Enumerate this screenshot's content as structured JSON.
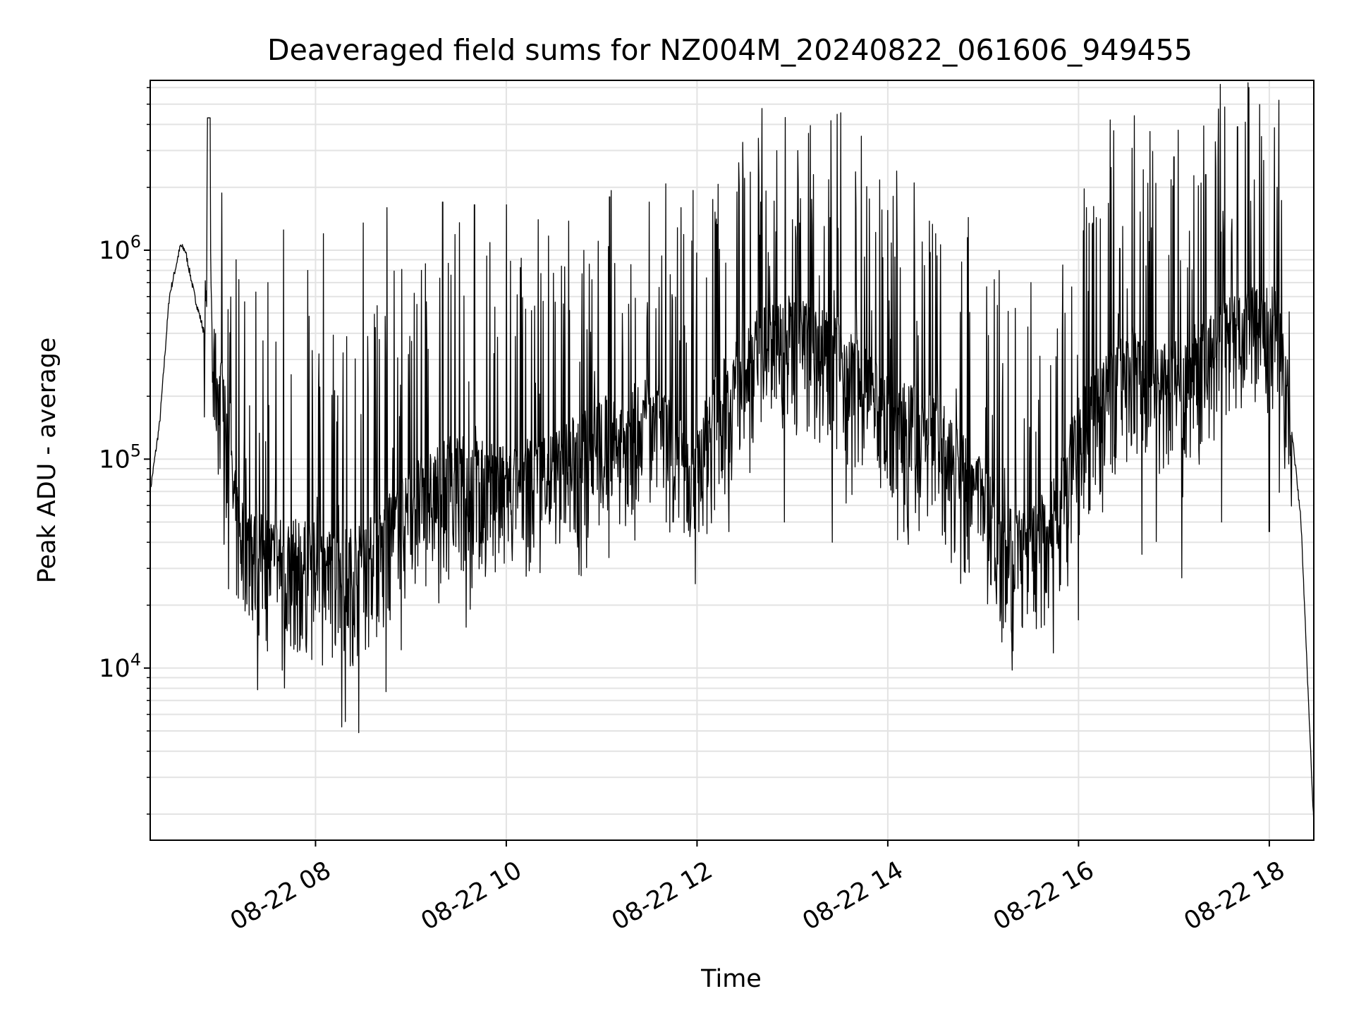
{
  "chart_data": {
    "type": "line",
    "title": "Deaveraged field sums for NZ004M_20240822_061606_949455",
    "xlabel": "Time",
    "ylabel": "Peak ADU - average",
    "yscale": "log",
    "grid": true,
    "legend": "none",
    "line_color": "#000000",
    "x_ticks": [
      "08-22 08",
      "08-22 10",
      "08-22 12",
      "08-22 14",
      "08-22 16",
      "08-22 18"
    ],
    "y_ticks": [
      {
        "value": 10000,
        "base": "10",
        "exp": "4"
      },
      {
        "value": 100000,
        "base": "10",
        "exp": "5"
      },
      {
        "value": 1000000,
        "base": "10",
        "exp": "6"
      }
    ],
    "xlim": [
      "2024-08-22 06:16",
      "2024-08-22 18:28"
    ],
    "ylim": [
      1500,
      6500000
    ],
    "series": [
      {
        "x": [
          "2024-08-22 06:16",
          "2024-08-22 06:22",
          "2024-08-22 06:28",
          "2024-08-22 06:35",
          "2024-08-22 06:38",
          "2024-08-22 06:44",
          "2024-08-22 06:50",
          "2024-08-22 06:53",
          "2024-08-22 06:55",
          "2024-08-22 07:00",
          "2024-08-22 07:04",
          "2024-08-22 07:10",
          "2024-08-22 07:20",
          "2024-08-22 07:30",
          "2024-08-22 07:45",
          "2024-08-22 08:00",
          "2024-08-22 08:15",
          "2024-08-22 08:30",
          "2024-08-22 08:45",
          "2024-08-22 09:00",
          "2024-08-22 09:15",
          "2024-08-22 09:30",
          "2024-08-22 10:00",
          "2024-08-22 10:30",
          "2024-08-22 11:00",
          "2024-08-22 11:30",
          "2024-08-22 12:00",
          "2024-08-22 12:30",
          "2024-08-22 13:00",
          "2024-08-22 13:30",
          "2024-08-22 14:00",
          "2024-08-22 14:30",
          "2024-08-22 15:00",
          "2024-08-22 15:15",
          "2024-08-22 15:30",
          "2024-08-22 15:45",
          "2024-08-22 16:00",
          "2024-08-22 16:30",
          "2024-08-22 17:00",
          "2024-08-22 17:30",
          "2024-08-22 17:50",
          "2024-08-22 18:05",
          "2024-08-22 18:12",
          "2024-08-22 18:20",
          "2024-08-22 18:25",
          "2024-08-22 18:28"
        ],
        "y": [
          70000,
          150000,
          600000,
          1050000,
          1000000,
          600000,
          400000,
          4300000,
          300000,
          200000,
          120000,
          50000,
          35000,
          33000,
          32000,
          30000,
          28000,
          30000,
          40000,
          60000,
          70000,
          80000,
          70000,
          85000,
          120000,
          150000,
          100000,
          300000,
          380000,
          300000,
          150000,
          130000,
          60000,
          40000,
          35000,
          50000,
          120000,
          280000,
          220000,
          350000,
          450000,
          400000,
          200000,
          50000,
          6000,
          1800
        ],
        "spikes": [
          [
            "2024-08-22 07:10",
            900000
          ],
          [
            "2024-08-22 07:30",
            700000
          ],
          [
            "2024-08-22 07:40",
            1250000
          ],
          [
            "2024-08-22 07:55",
            800000
          ],
          [
            "2024-08-22 08:05",
            1200000
          ],
          [
            "2024-08-22 08:20",
            650000
          ],
          [
            "2024-08-22 08:30",
            1350000
          ],
          [
            "2024-08-22 08:45",
            1600000
          ],
          [
            "2024-08-22 09:00",
            1650000
          ],
          [
            "2024-08-22 09:20",
            1700000
          ],
          [
            "2024-08-22 09:40",
            1650000
          ],
          [
            "2024-08-22 10:00",
            1650000
          ],
          [
            "2024-08-22 10:20",
            1400000
          ],
          [
            "2024-08-22 10:40",
            1600000
          ],
          [
            "2024-08-22 11:05",
            1800000
          ],
          [
            "2024-08-22 11:30",
            1700000
          ],
          [
            "2024-08-22 11:50",
            1600000
          ],
          [
            "2024-08-22 12:10",
            1750000
          ],
          [
            "2024-08-22 12:25",
            1900000
          ],
          [
            "2024-08-22 12:40",
            1700000
          ],
          [
            "2024-08-22 13:00",
            1400000
          ],
          [
            "2024-08-22 13:20",
            1300000
          ],
          [
            "2024-08-22 13:40",
            1600000
          ],
          [
            "2024-08-22 14:00",
            1550000
          ],
          [
            "2024-08-22 14:30",
            1200000
          ],
          [
            "2024-08-22 14:50",
            1150000
          ],
          [
            "2024-08-22 15:10",
            800000
          ],
          [
            "2024-08-22 15:30",
            700000
          ],
          [
            "2024-08-22 15:50",
            850000
          ],
          [
            "2024-08-22 16:05",
            1600000
          ],
          [
            "2024-08-22 16:20",
            4200000
          ],
          [
            "2024-08-22 16:35",
            4400000
          ],
          [
            "2024-08-22 16:45",
            3700000
          ],
          [
            "2024-08-22 17:00",
            2800000
          ],
          [
            "2024-08-22 17:20",
            2300000
          ],
          [
            "2024-08-22 17:30",
            3200000
          ],
          [
            "2024-08-22 17:40",
            3900000
          ],
          [
            "2024-08-22 17:45",
            4100000
          ],
          [
            "2024-08-22 17:55",
            3500000
          ],
          [
            "2024-08-22 18:05",
            2000000
          ]
        ],
        "dips": [
          [
            "2024-08-22 07:20",
            19000
          ],
          [
            "2024-08-22 07:45",
            20000
          ],
          [
            "2024-08-22 08:00",
            19000
          ],
          [
            "2024-08-22 08:20",
            16000
          ],
          [
            "2024-08-22 08:35",
            18000
          ],
          [
            "2024-08-22 09:00",
            35000
          ],
          [
            "2024-08-22 09:30",
            45000
          ],
          [
            "2024-08-22 10:10",
            42000
          ],
          [
            "2024-08-22 10:40",
            45000
          ],
          [
            "2024-08-22 11:15",
            48000
          ],
          [
            "2024-08-22 11:45",
            50000
          ],
          [
            "2024-08-22 12:20",
            45000
          ],
          [
            "2024-08-22 12:55",
            50000
          ],
          [
            "2024-08-22 13:25",
            40000
          ],
          [
            "2024-08-22 14:10",
            45000
          ],
          [
            "2024-08-22 14:40",
            32000
          ],
          [
            "2024-08-22 15:05",
            25000
          ],
          [
            "2024-08-22 15:20",
            24000
          ],
          [
            "2024-08-22 15:40",
            23000
          ],
          [
            "2024-08-22 16:00",
            17000
          ],
          [
            "2024-08-22 16:40",
            35000
          ],
          [
            "2024-08-22 17:05",
            27000
          ],
          [
            "2024-08-22 17:30",
            50000
          ],
          [
            "2024-08-22 18:00",
            45000
          ]
        ]
      }
    ]
  }
}
